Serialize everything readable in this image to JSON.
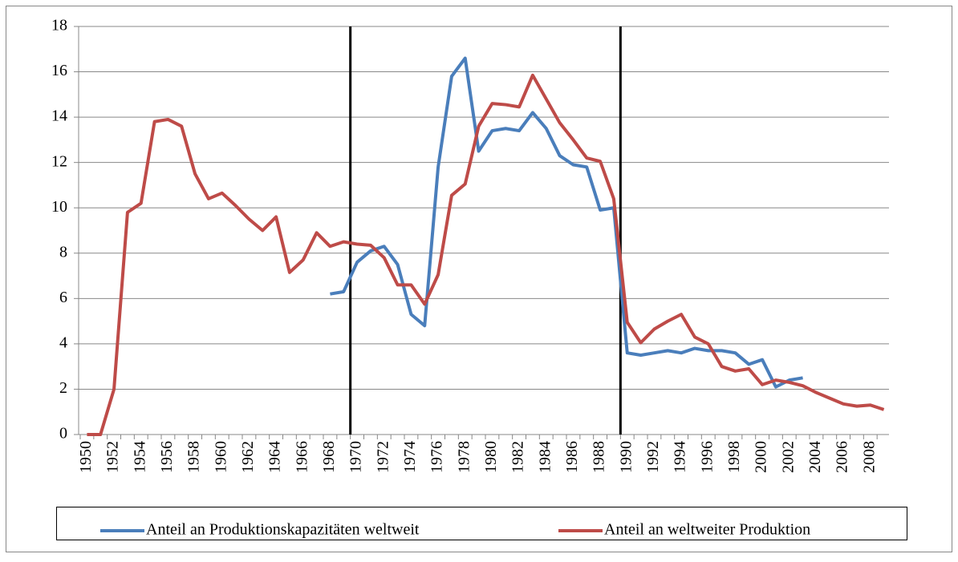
{
  "chart_data": {
    "type": "line",
    "categories": [
      "1950",
      null,
      "1952",
      null,
      "1954",
      null,
      "1956",
      null,
      "1958",
      null,
      "1960",
      null,
      "1962",
      null,
      "1964",
      null,
      "1966",
      null,
      "1968",
      null,
      "1970",
      null,
      "1972",
      null,
      "1974",
      null,
      "1976",
      null,
      "1978",
      null,
      "1980",
      null,
      "1982",
      null,
      "1984",
      null,
      "1986",
      null,
      "1988",
      null,
      "1990",
      null,
      "1992",
      null,
      "1994",
      null,
      "1996",
      null,
      "1998",
      null,
      "2000",
      null,
      "2002",
      null,
      "2004",
      null,
      "2006",
      null,
      "2008",
      null
    ],
    "series": [
      {
        "name": "Anteil an Produktionskapazitäten weltweit",
        "color": "#4a7ebb",
        "values": [
          null,
          null,
          null,
          null,
          null,
          null,
          null,
          null,
          null,
          null,
          null,
          null,
          null,
          null,
          null,
          null,
          null,
          null,
          6.2,
          6.3,
          7.6,
          8.1,
          8.3,
          7.5,
          5.3,
          4.8,
          11.8,
          15.8,
          16.6,
          12.5,
          13.4,
          13.5,
          13.4,
          14.2,
          13.5,
          12.3,
          11.9,
          11.8,
          9.9,
          10.0,
          3.6,
          3.5,
          3.6,
          3.7,
          3.6,
          3.8,
          3.7,
          3.7,
          3.6,
          3.1,
          3.3,
          2.1,
          2.4,
          2.5,
          null,
          null,
          null,
          null,
          null,
          null
        ]
      },
      {
        "name": "Anteil an weltweiter Produktion",
        "color": "#be4b48",
        "values": [
          0,
          0,
          2,
          9.8,
          10.2,
          13.8,
          13.9,
          13.6,
          11.5,
          10.4,
          10.65,
          10.1,
          9.5,
          9.0,
          9.6,
          7.15,
          7.7,
          8.9,
          8.3,
          8.5,
          8.4,
          8.35,
          7.8,
          6.6,
          6.6,
          5.75,
          7.05,
          10.55,
          11.05,
          13.6,
          14.6,
          14.55,
          14.45,
          15.85,
          14.8,
          13.75,
          13.0,
          12.2,
          12.05,
          10.4,
          4.95,
          4.05,
          4.65,
          5.0,
          5.3,
          4.3,
          4.0,
          3.0,
          2.8,
          2.9,
          2.2,
          2.4,
          2.3,
          2.15,
          1.85,
          1.6,
          1.35,
          1.25,
          1.3,
          1.1
        ]
      }
    ],
    "vlines": [
      20,
      40
    ],
    "ylim": [
      0,
      18
    ],
    "yticks": [
      0,
      2,
      4,
      6,
      8,
      10,
      12,
      14,
      16,
      18
    ],
    "grid": true,
    "legend": "bottom"
  }
}
